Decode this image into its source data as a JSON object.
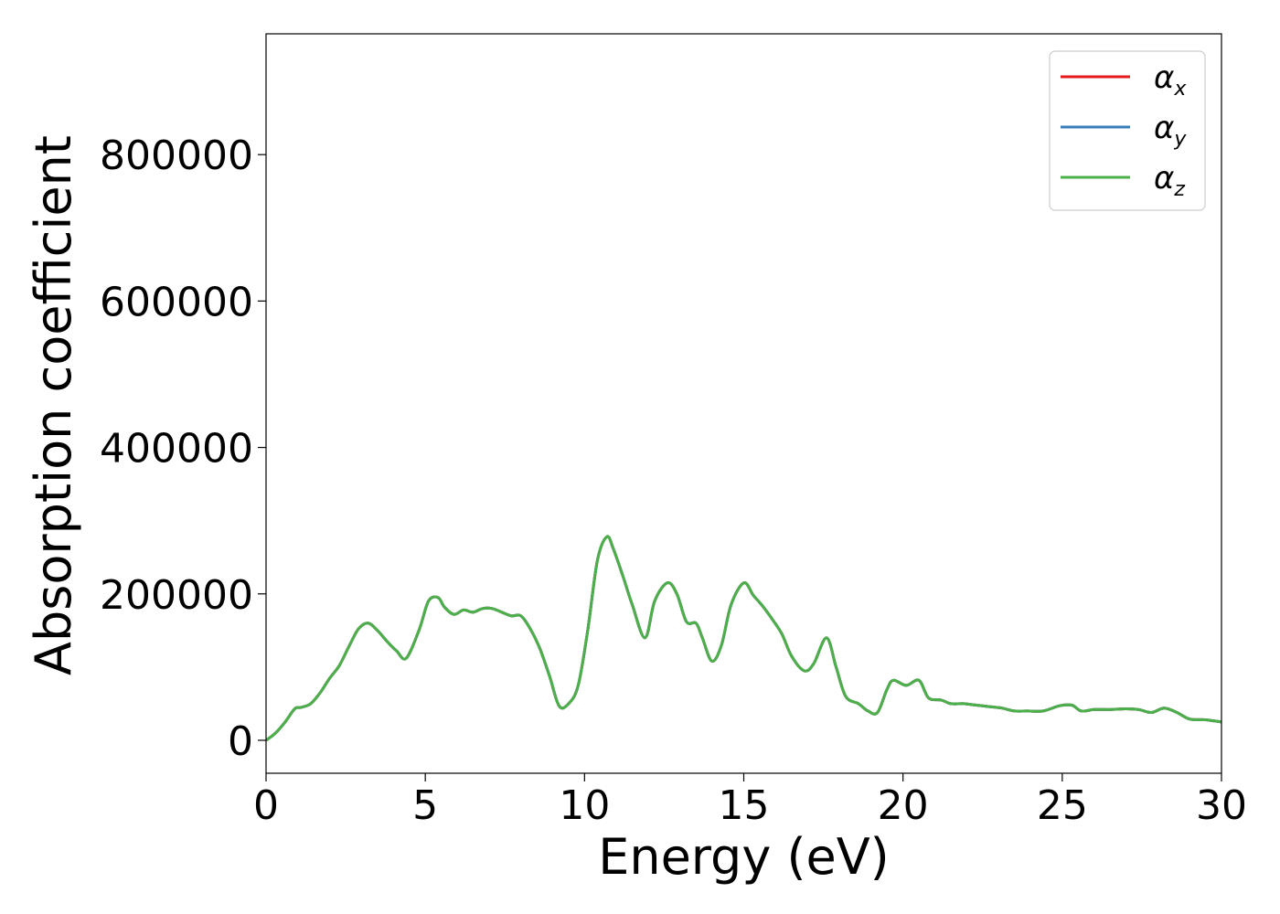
{
  "chart_data": {
    "type": "line",
    "xlabel": "Energy (eV)",
    "ylabel": "Absorption coefficient",
    "xlim": [
      0,
      30
    ],
    "ylim": [
      -45000,
      965000
    ],
    "xticks": [
      0,
      5,
      10,
      15,
      20,
      25,
      30
    ],
    "xtick_labels": [
      "0",
      "5",
      "10",
      "15",
      "20",
      "25",
      "30"
    ],
    "yticks": [
      0,
      200000,
      400000,
      600000,
      800000
    ],
    "ytick_labels": [
      "0",
      "200000",
      "400000",
      "600000",
      "800000"
    ],
    "grid": false,
    "legend_position": "top-right",
    "series": [
      {
        "name": "α",
        "subscript": "x",
        "color": "#e41a1c",
        "x": [
          0,
          0.3,
          0.6,
          0.9,
          1.1,
          1.4,
          1.7,
          2.0,
          2.3,
          2.6,
          2.9,
          3.2,
          3.5,
          3.8,
          4.1,
          4.4,
          4.8,
          5.1,
          5.4,
          5.6,
          5.9,
          6.2,
          6.5,
          6.8,
          7.1,
          7.4,
          7.7,
          8.0,
          8.3,
          8.6,
          8.9,
          9.2,
          9.5,
          9.8,
          10.1,
          10.4,
          10.7,
          10.9,
          11.2,
          11.5,
          11.9,
          12.2,
          12.6,
          12.9,
          13.2,
          13.5,
          13.7,
          14.0,
          14.3,
          14.6,
          15.0,
          15.3,
          15.6,
          15.9,
          16.2,
          16.5,
          16.9,
          17.2,
          17.6,
          17.9,
          18.2,
          18.6,
          18.9,
          19.2,
          19.5,
          19.7,
          20.1,
          20.5,
          20.8,
          21.2,
          21.5,
          21.9,
          22.3,
          22.7,
          23.1,
          23.5,
          23.9,
          24.4,
          24.9,
          25.3,
          25.6,
          26.0,
          26.5,
          27.0,
          27.4,
          27.8,
          28.2,
          28.6,
          29.0,
          29.5,
          30.0
        ],
        "values": [
          0,
          10000,
          25000,
          43000,
          45000,
          50000,
          65000,
          85000,
          102000,
          128000,
          152000,
          160000,
          150000,
          135000,
          122000,
          112000,
          150000,
          190000,
          195000,
          182000,
          172000,
          178000,
          175000,
          180000,
          180000,
          175000,
          170000,
          170000,
          152000,
          125000,
          88000,
          47000,
          50000,
          75000,
          150000,
          245000,
          278000,
          262000,
          225000,
          185000,
          140000,
          190000,
          215000,
          200000,
          162000,
          160000,
          140000,
          108000,
          130000,
          185000,
          215000,
          198000,
          183000,
          165000,
          145000,
          115000,
          95000,
          105000,
          140000,
          100000,
          60000,
          50000,
          40000,
          38000,
          70000,
          82000,
          75000,
          82000,
          58000,
          55000,
          50000,
          50000,
          48000,
          46000,
          44000,
          40000,
          40000,
          40000,
          47000,
          48000,
          40000,
          42000,
          42000,
          43000,
          42000,
          38000,
          44000,
          38000,
          29000,
          28000,
          25000
        ]
      },
      {
        "name": "α",
        "subscript": "y",
        "color": "#377eb8",
        "x": [
          0,
          0.3,
          0.6,
          0.9,
          1.1,
          1.4,
          1.7,
          2.0,
          2.3,
          2.6,
          2.9,
          3.2,
          3.5,
          3.8,
          4.1,
          4.4,
          4.8,
          5.1,
          5.4,
          5.6,
          5.9,
          6.2,
          6.5,
          6.8,
          7.1,
          7.4,
          7.7,
          8.0,
          8.3,
          8.6,
          8.9,
          9.2,
          9.5,
          9.8,
          10.1,
          10.4,
          10.7,
          10.9,
          11.2,
          11.5,
          11.9,
          12.2,
          12.6,
          12.9,
          13.2,
          13.5,
          13.7,
          14.0,
          14.3,
          14.6,
          15.0,
          15.3,
          15.6,
          15.9,
          16.2,
          16.5,
          16.9,
          17.2,
          17.6,
          17.9,
          18.2,
          18.6,
          18.9,
          19.2,
          19.5,
          19.7,
          20.1,
          20.5,
          20.8,
          21.2,
          21.5,
          21.9,
          22.3,
          22.7,
          23.1,
          23.5,
          23.9,
          24.4,
          24.9,
          25.3,
          25.6,
          26.0,
          26.5,
          27.0,
          27.4,
          27.8,
          28.2,
          28.6,
          29.0,
          29.5,
          30.0
        ],
        "values": [
          0,
          10000,
          25000,
          43000,
          45000,
          50000,
          65000,
          85000,
          102000,
          128000,
          152000,
          160000,
          150000,
          135000,
          122000,
          112000,
          150000,
          190000,
          195000,
          182000,
          172000,
          178000,
          175000,
          180000,
          180000,
          175000,
          170000,
          170000,
          152000,
          125000,
          88000,
          47000,
          50000,
          75000,
          150000,
          245000,
          278000,
          262000,
          225000,
          185000,
          140000,
          190000,
          215000,
          200000,
          162000,
          160000,
          140000,
          108000,
          130000,
          185000,
          215000,
          198000,
          183000,
          165000,
          145000,
          115000,
          95000,
          105000,
          140000,
          100000,
          60000,
          50000,
          40000,
          38000,
          70000,
          82000,
          75000,
          82000,
          58000,
          55000,
          50000,
          50000,
          48000,
          46000,
          44000,
          40000,
          40000,
          40000,
          47000,
          48000,
          40000,
          42000,
          42000,
          43000,
          42000,
          38000,
          44000,
          38000,
          29000,
          28000,
          25000
        ]
      },
      {
        "name": "α",
        "subscript": "z",
        "color": "#4daf4a",
        "x": [
          0,
          0.3,
          0.6,
          0.9,
          1.1,
          1.4,
          1.7,
          2.0,
          2.3,
          2.6,
          2.9,
          3.2,
          3.5,
          3.8,
          4.1,
          4.4,
          4.8,
          5.1,
          5.4,
          5.6,
          5.9,
          6.2,
          6.5,
          6.8,
          7.1,
          7.4,
          7.7,
          8.0,
          8.3,
          8.6,
          8.9,
          9.2,
          9.5,
          9.8,
          10.1,
          10.4,
          10.7,
          10.9,
          11.2,
          11.5,
          11.9,
          12.2,
          12.6,
          12.9,
          13.2,
          13.5,
          13.7,
          14.0,
          14.3,
          14.6,
          15.0,
          15.3,
          15.6,
          15.9,
          16.2,
          16.5,
          16.9,
          17.2,
          17.6,
          17.9,
          18.2,
          18.6,
          18.9,
          19.2,
          19.5,
          19.7,
          20.1,
          20.5,
          20.8,
          21.2,
          21.5,
          21.9,
          22.3,
          22.7,
          23.1,
          23.5,
          23.9,
          24.4,
          24.9,
          25.3,
          25.6,
          26.0,
          26.5,
          27.0,
          27.4,
          27.8,
          28.2,
          28.6,
          29.0,
          29.5,
          30.0
        ],
        "values": [
          0,
          10000,
          25000,
          43000,
          45000,
          50000,
          65000,
          85000,
          102000,
          128000,
          152000,
          160000,
          150000,
          135000,
          122000,
          112000,
          150000,
          190000,
          195000,
          182000,
          172000,
          178000,
          175000,
          180000,
          180000,
          175000,
          170000,
          170000,
          152000,
          125000,
          88000,
          47000,
          50000,
          75000,
          150000,
          245000,
          278000,
          262000,
          225000,
          185000,
          140000,
          190000,
          215000,
          200000,
          162000,
          160000,
          140000,
          108000,
          130000,
          185000,
          215000,
          198000,
          183000,
          165000,
          145000,
          115000,
          95000,
          105000,
          140000,
          100000,
          60000,
          50000,
          40000,
          38000,
          70000,
          82000,
          75000,
          82000,
          58000,
          55000,
          50000,
          50000,
          48000,
          46000,
          44000,
          40000,
          40000,
          40000,
          47000,
          48000,
          40000,
          42000,
          42000,
          43000,
          42000,
          38000,
          44000,
          38000,
          29000,
          28000,
          25000
        ]
      }
    ]
  }
}
